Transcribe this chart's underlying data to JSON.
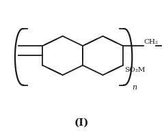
{
  "title": "(I)",
  "title_fontsize": 11,
  "ch2_label": "CH₂",
  "so3m_label": "SO₃M",
  "n_label": "n",
  "bg_color": "#ffffff",
  "line_color": "#1a1a1a",
  "line_width": 1.3
}
